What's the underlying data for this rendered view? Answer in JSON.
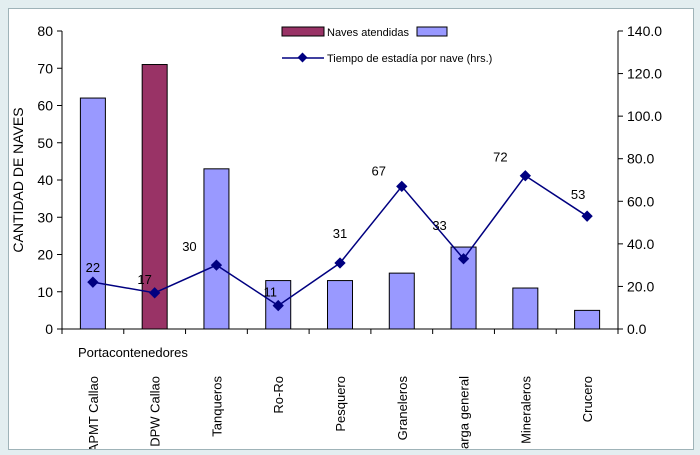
{
  "chart_data": {
    "type": "bar",
    "categories": [
      "APMT Callao",
      "DPW Callao",
      "Tanqueros",
      "Ro-Ro",
      "Pesquero",
      "Graneleros",
      "Carga general",
      "Mineraleros",
      "Crucero"
    ],
    "group_label": "Portacontenedores",
    "ylabel": "CANTIDAD DE NAVES",
    "ylim": [
      0,
      80
    ],
    "y_ticks": [
      "0",
      "10",
      "20",
      "30",
      "40",
      "50",
      "60",
      "70",
      "80"
    ],
    "y2lim": [
      0,
      140
    ],
    "y2_ticks": [
      "0.0",
      "20.0",
      "40.0",
      "60.0",
      "80.0",
      "100.0",
      "120.0",
      "140.0"
    ],
    "legend_position": "top-center",
    "series": [
      {
        "name": "Naves atendidas",
        "kind": "bar",
        "axis": "left",
        "values": [
          62,
          71,
          43,
          13,
          13,
          15,
          22,
          11,
          5
        ],
        "colors": [
          "#9999ff",
          "#993366",
          "#9999ff",
          "#9999ff",
          "#9999ff",
          "#9999ff",
          "#9999ff",
          "#9999ff",
          "#9999ff"
        ]
      },
      {
        "name": "Tiempo de estadía por nave (hrs.)",
        "kind": "line",
        "axis": "right",
        "values": [
          22,
          17,
          30,
          11,
          31,
          67,
          33,
          72,
          53
        ],
        "labels": [
          "22",
          "17",
          "30",
          "11",
          "31",
          "67",
          "33",
          "72",
          "53"
        ],
        "color": "#000080"
      }
    ]
  }
}
